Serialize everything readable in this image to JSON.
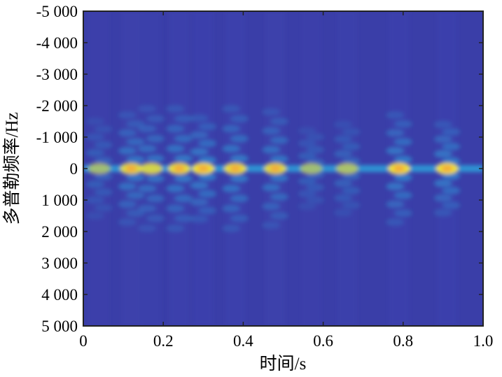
{
  "chart_data": {
    "type": "heatmap",
    "title": "",
    "xlabel": "时间/s",
    "ylabel": "多普勒频率/Hz",
    "xlim": [
      0,
      1.0
    ],
    "ylim": [
      -5000,
      5000
    ],
    "y_inverted": true,
    "x_ticks": [
      0,
      0.2,
      0.4,
      0.6,
      0.8,
      1.0
    ],
    "x_tick_labels": [
      "0",
      "0.2",
      "0.4",
      "0.6",
      "0.8",
      "1.0"
    ],
    "y_ticks": [
      -5000,
      -4000,
      -3000,
      -2000,
      -1000,
      0,
      1000,
      2000,
      3000,
      4000,
      5000
    ],
    "y_tick_labels": [
      "-5 000",
      "-4 000",
      "-3 000",
      "-2 000",
      "-1 000",
      "0",
      "1 000",
      "2 000",
      "3 000",
      "4 000",
      "5 000"
    ],
    "colormap": "parula",
    "colors": {
      "background": "#3a3ea8",
      "low": "#3e42b0",
      "mid": "#2e9bd8",
      "high": "#fbe62a",
      "peak": "#f3a93c"
    },
    "bright_band_doppler_hz": 0,
    "peak_times_s": [
      0.04,
      0.12,
      0.17,
      0.24,
      0.3,
      0.38,
      0.48,
      0.57,
      0.66,
      0.79,
      0.91
    ],
    "peak_intensity": [
      0.55,
      0.85,
      0.8,
      0.9,
      0.95,
      0.9,
      0.85,
      0.55,
      0.6,
      0.95,
      0.95
    ],
    "sideband_extent_hz": [
      1500,
      1700,
      1900,
      1900,
      1600,
      1900,
      1800,
      1200,
      1400,
      1700,
      1400
    ],
    "grid": false
  }
}
